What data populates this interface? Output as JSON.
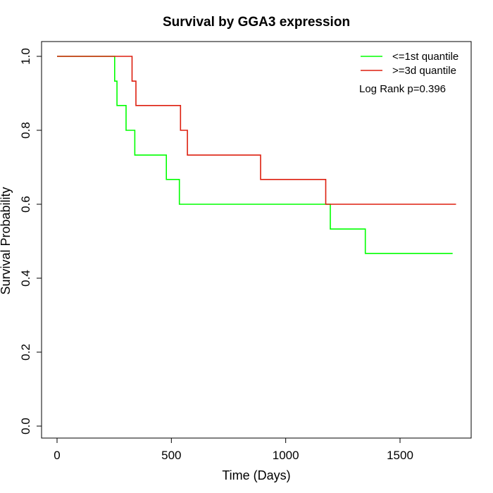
{
  "chart_data": {
    "type": "line",
    "title": "Survival by GGA3 expression",
    "xlabel": "Time (Days)",
    "ylabel": "Survival Probability",
    "xlim": [
      0,
      1750
    ],
    "ylim": [
      0,
      1
    ],
    "x_ticks": [
      0,
      500,
      1000,
      1500
    ],
    "y_ticks": [
      0.0,
      0.2,
      0.4,
      0.6,
      0.8,
      1.0
    ],
    "x_tick_labels": [
      "0",
      "500",
      "1000",
      "1500"
    ],
    "y_tick_labels": [
      "0.0",
      "0.2",
      "0.4",
      "0.6",
      "0.8",
      "1.0"
    ],
    "grid": false,
    "legend_position": "top-right",
    "annotation": "Log Rank p=0.396",
    "series": [
      {
        "name": "<=1st quantile",
        "color": "#00ff00",
        "step": true,
        "points": [
          [
            0,
            1.0
          ],
          [
            252,
            1.0
          ],
          [
            252,
            0.933
          ],
          [
            262,
            0.933
          ],
          [
            262,
            0.867
          ],
          [
            302,
            0.867
          ],
          [
            302,
            0.8
          ],
          [
            340,
            0.8
          ],
          [
            340,
            0.733
          ],
          [
            478,
            0.733
          ],
          [
            478,
            0.667
          ],
          [
            535,
            0.667
          ],
          [
            535,
            0.6
          ],
          [
            1195,
            0.6
          ],
          [
            1195,
            0.533
          ],
          [
            1348,
            0.533
          ],
          [
            1348,
            0.467
          ],
          [
            1730,
            0.467
          ]
        ]
      },
      {
        "name": ">=3d quantile",
        "color": "#dd1f0f",
        "step": true,
        "points": [
          [
            0,
            1.0
          ],
          [
            328,
            1.0
          ],
          [
            328,
            0.933
          ],
          [
            345,
            0.933
          ],
          [
            345,
            0.867
          ],
          [
            540,
            0.867
          ],
          [
            540,
            0.8
          ],
          [
            570,
            0.8
          ],
          [
            570,
            0.733
          ],
          [
            890,
            0.733
          ],
          [
            890,
            0.667
          ],
          [
            1175,
            0.667
          ],
          [
            1175,
            0.6
          ],
          [
            1745,
            0.6
          ]
        ]
      }
    ]
  }
}
